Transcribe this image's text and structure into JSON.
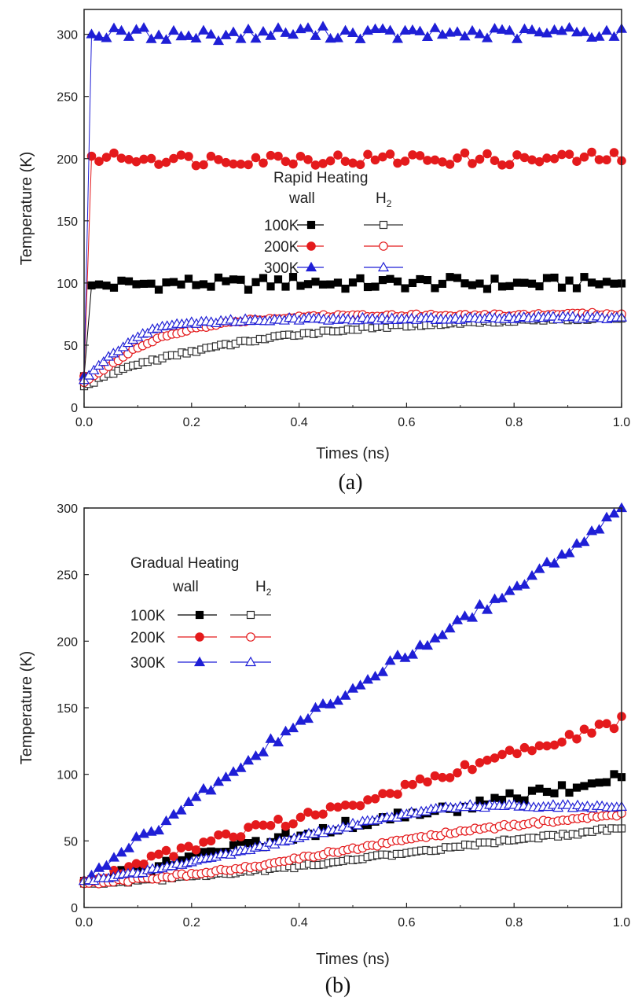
{
  "chart_data": [
    {
      "type": "scatter",
      "panel_label": "(a)",
      "xlabel": "Times (ns)",
      "ylabel": "Temperature (K)",
      "xlim": [
        0.0,
        1.0
      ],
      "ylim": [
        0,
        320
      ],
      "xticks": [
        "0.0",
        "0.2",
        "0.4",
        "0.6",
        "0.8",
        "1.0"
      ],
      "yticks": [
        "0",
        "50",
        "100",
        "150",
        "200",
        "250",
        "300"
      ],
      "legend": {
        "title": "Rapid Heating",
        "col_wall": "wall",
        "col_h2": "H",
        "col_h2_sub": "2",
        "rows": [
          "100K",
          "200K",
          "300K"
        ]
      },
      "series": [
        {
          "name": "wall 100K",
          "color": "#000000",
          "marker": "square-filled",
          "x": [
            0.0,
            0.01,
            0.1,
            0.2,
            0.3,
            0.4,
            0.5,
            0.6,
            0.7,
            0.8,
            0.9,
            1.0
          ],
          "values": [
            25,
            98,
            99,
            100,
            99,
            101,
            99,
            100,
            100,
            99,
            100,
            100
          ]
        },
        {
          "name": "wall 200K",
          "color": "#e41a1c",
          "marker": "circle-filled",
          "x": [
            0.0,
            0.01,
            0.1,
            0.2,
            0.3,
            0.4,
            0.5,
            0.6,
            0.7,
            0.8,
            0.9,
            1.0
          ],
          "values": [
            25,
            202,
            201,
            199,
            200,
            200,
            199,
            200,
            200,
            199,
            200,
            201
          ]
        },
        {
          "name": "wall 300K",
          "color": "#1f1fd6",
          "marker": "triangle-filled",
          "x": [
            0.0,
            0.01,
            0.1,
            0.2,
            0.3,
            0.4,
            0.5,
            0.6,
            0.7,
            0.8,
            0.9,
            1.0
          ],
          "values": [
            25,
            300,
            301,
            299,
            300,
            302,
            301,
            300,
            301,
            300,
            302,
            301
          ]
        },
        {
          "name": "H2 100K",
          "color": "#333333",
          "marker": "square-open",
          "x": [
            0.0,
            0.05,
            0.1,
            0.15,
            0.2,
            0.3,
            0.4,
            0.5,
            0.6,
            0.7,
            0.8,
            0.9,
            1.0
          ],
          "values": [
            17,
            27,
            35,
            40,
            45,
            53,
            59,
            63,
            66,
            68,
            70,
            71,
            72
          ]
        },
        {
          "name": "H2 200K",
          "color": "#e41a1c",
          "marker": "circle-open",
          "x": [
            0.0,
            0.05,
            0.1,
            0.15,
            0.2,
            0.3,
            0.4,
            0.5,
            0.6,
            0.7,
            0.8,
            0.9,
            1.0
          ],
          "values": [
            20,
            35,
            48,
            57,
            63,
            70,
            73,
            74,
            74,
            74,
            74,
            75,
            75
          ]
        },
        {
          "name": "H2 300K",
          "color": "#1f1fd6",
          "marker": "triangle-open",
          "x": [
            0.0,
            0.05,
            0.1,
            0.15,
            0.2,
            0.3,
            0.4,
            0.5,
            0.6,
            0.7,
            0.8,
            0.9,
            1.0
          ],
          "values": [
            22,
            42,
            57,
            66,
            68,
            70,
            71,
            71,
            71,
            71,
            72,
            72,
            72
          ]
        }
      ]
    },
    {
      "type": "scatter",
      "panel_label": "(b)",
      "xlabel": "Times (ns)",
      "ylabel": "Temperature (K)",
      "xlim": [
        0.0,
        1.0
      ],
      "ylim": [
        0,
        300
      ],
      "xticks": [
        "0.0",
        "0.2",
        "0.4",
        "0.6",
        "0.8",
        "1.0"
      ],
      "yticks": [
        "0",
        "50",
        "100",
        "150",
        "200",
        "250",
        "300"
      ],
      "legend": {
        "title": "Gradual Heating",
        "col_wall": "wall",
        "col_h2": "H",
        "col_h2_sub": "2",
        "rows": [
          "100K",
          "200K",
          "300K"
        ]
      },
      "series": [
        {
          "name": "wall 100K",
          "color": "#000000",
          "marker": "square-filled",
          "x": [
            0.0,
            0.1,
            0.2,
            0.3,
            0.4,
            0.5,
            0.6,
            0.7,
            0.8,
            0.9,
            1.0
          ],
          "values": [
            20,
            28,
            37,
            46,
            55,
            63,
            70,
            76,
            83,
            90,
            98
          ]
        },
        {
          "name": "wall 200K",
          "color": "#e41a1c",
          "marker": "circle-filled",
          "x": [
            0.0,
            0.1,
            0.2,
            0.3,
            0.4,
            0.5,
            0.6,
            0.7,
            0.8,
            0.9,
            1.0
          ],
          "values": [
            20,
            33,
            45,
            56,
            67,
            78,
            90,
            103,
            116,
            127,
            140
          ]
        },
        {
          "name": "wall 300K",
          "color": "#1f1fd6",
          "marker": "triangle-filled",
          "x": [
            0.0,
            0.1,
            0.2,
            0.3,
            0.4,
            0.5,
            0.6,
            0.7,
            0.8,
            0.9,
            1.0
          ],
          "values": [
            20,
            50,
            80,
            110,
            138,
            165,
            190,
            215,
            240,
            268,
            300
          ]
        },
        {
          "name": "H2 100K",
          "color": "#333333",
          "marker": "square-open",
          "x": [
            0.0,
            0.1,
            0.2,
            0.3,
            0.4,
            0.5,
            0.6,
            0.7,
            0.8,
            0.9,
            1.0
          ],
          "values": [
            18,
            20,
            23,
            27,
            31,
            36,
            41,
            46,
            51,
            55,
            60
          ]
        },
        {
          "name": "H2 200K",
          "color": "#e41a1c",
          "marker": "circle-open",
          "x": [
            0.0,
            0.1,
            0.2,
            0.3,
            0.4,
            0.5,
            0.6,
            0.7,
            0.8,
            0.9,
            1.0
          ],
          "values": [
            18,
            21,
            25,
            30,
            37,
            44,
            51,
            57,
            62,
            66,
            70
          ]
        },
        {
          "name": "H2 300K",
          "color": "#1f1fd6",
          "marker": "triangle-open",
          "x": [
            0.0,
            0.1,
            0.2,
            0.3,
            0.4,
            0.5,
            0.6,
            0.7,
            0.8,
            0.9,
            1.0
          ],
          "values": [
            20,
            26,
            34,
            43,
            53,
            62,
            70,
            76,
            76,
            76,
            75
          ]
        }
      ]
    }
  ]
}
